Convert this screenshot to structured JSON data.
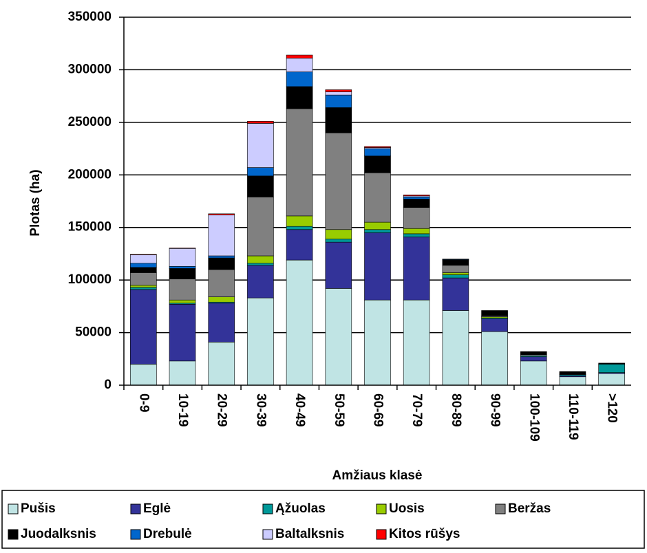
{
  "chart_data": {
    "type": "stacked_bar",
    "categories": [
      "0-9",
      "10-19",
      "20-29",
      "30-39",
      "40-49",
      "50-59",
      "60-69",
      "70-79",
      "80-89",
      "90-99",
      "100-109",
      "110-119",
      ">120"
    ],
    "xlabel": "Amžiaus klasė",
    "ylabel": "Plotas (ha)",
    "ylim": [
      0,
      350000
    ],
    "yticks": [
      0,
      50000,
      100000,
      150000,
      200000,
      250000,
      300000,
      350000
    ],
    "grid": true,
    "series": [
      {
        "name": "Pušis",
        "color": "#c0e4e4",
        "values": [
          20000,
          23000,
          41000,
          83000,
          119000,
          92000,
          81000,
          81000,
          71000,
          51000,
          23000,
          8000,
          11000
        ]
      },
      {
        "name": "Eglė",
        "color": "#333399",
        "values": [
          71000,
          54000,
          37000,
          31000,
          29000,
          44000,
          64000,
          60000,
          31000,
          12000,
          4000,
          1000,
          1000
        ]
      },
      {
        "name": "Ąžuolas",
        "color": "#009999",
        "values": [
          2000,
          1000,
          1000,
          2000,
          3000,
          3000,
          3000,
          3000,
          3000,
          1000,
          1000,
          1000,
          8000
        ]
      },
      {
        "name": "Uosis",
        "color": "#99cc00",
        "values": [
          2000,
          3000,
          5000,
          7000,
          10000,
          9000,
          7000,
          5000,
          2000,
          1000,
          0,
          0,
          0
        ]
      },
      {
        "name": "Beržas",
        "color": "#808080",
        "values": [
          12000,
          20000,
          26000,
          56000,
          102000,
          92000,
          47000,
          20000,
          7000,
          1000,
          1000,
          500,
          0
        ]
      },
      {
        "name": "Juodalksnis",
        "color": "#000000",
        "values": [
          5000,
          10000,
          11000,
          20000,
          21000,
          24000,
          16000,
          8000,
          5000,
          5000,
          3000,
          2500,
          1000
        ]
      },
      {
        "name": "Drebulė",
        "color": "#0066cc",
        "values": [
          4000,
          2000,
          2000,
          8000,
          14000,
          12000,
          7000,
          2000,
          500,
          0,
          0,
          0,
          0
        ]
      },
      {
        "name": "Baltalksnis",
        "color": "#ccccff",
        "values": [
          8000,
          17000,
          39000,
          42000,
          13000,
          3000,
          1000,
          1000,
          300,
          0,
          0,
          0,
          0
        ]
      },
      {
        "name": "Kitos rūšys",
        "color": "#ff0000",
        "values": [
          500,
          500,
          1000,
          2000,
          3000,
          2000,
          1000,
          1000,
          200,
          0,
          0,
          0,
          0
        ]
      }
    ]
  }
}
